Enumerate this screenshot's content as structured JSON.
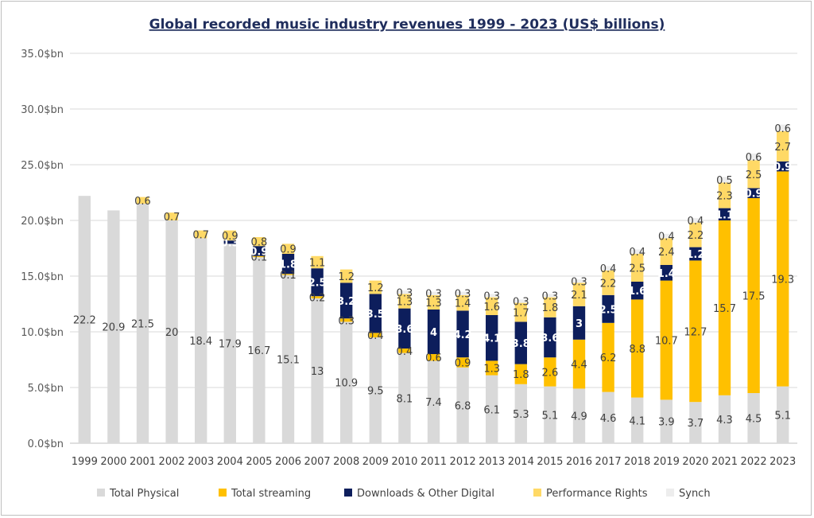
{
  "chart_data": {
    "type": "bar",
    "stacked": true,
    "title": "Global recorded music industry revenues 1999 - 2023 (US$ billions)",
    "xlabel": "",
    "ylabel": "",
    "ylim": [
      0,
      35
    ],
    "yticks": [
      0,
      5,
      10,
      15,
      20,
      25,
      30,
      35
    ],
    "ytick_labels": [
      "0.0$bn",
      "5.0$bn",
      "10.0$bn",
      "15.0$bn",
      "20.0$bn",
      "25.0$bn",
      "30.0$bn",
      "35.0$bn"
    ],
    "grid": true,
    "legend_position": "bottom",
    "categories": [
      "1999",
      "2000",
      "2001",
      "2002",
      "2003",
      "2004",
      "2005",
      "2006",
      "2007",
      "2008",
      "2009",
      "2010",
      "2011",
      "2012",
      "2013",
      "2014",
      "2015",
      "2016",
      "2017",
      "2018",
      "2019",
      "2020",
      "2021",
      "2022",
      "2023"
    ],
    "series": [
      {
        "name": "Total Physical",
        "color": "#d9d9d9",
        "label_color": "#404040",
        "values": [
          22.2,
          20.9,
          21.5,
          20,
          18.4,
          17.9,
          16.7,
          15.1,
          13,
          10.9,
          9.5,
          8.1,
          7.4,
          6.8,
          6.1,
          5.3,
          5.1,
          4.9,
          4.6,
          4.1,
          3.9,
          3.7,
          4.3,
          4.5,
          5.1
        ]
      },
      {
        "name": "Total streaming",
        "color": "#ffc000",
        "label_color": "#404040",
        "values": [
          null,
          null,
          null,
          null,
          null,
          null,
          0.1,
          0.1,
          0.2,
          0.3,
          0.4,
          0.4,
          0.6,
          0.9,
          1.3,
          1.8,
          2.6,
          4.4,
          6.2,
          8.8,
          10.7,
          12.7,
          15.7,
          17.5,
          19.3
        ]
      },
      {
        "name": "Downloads & Other Digital",
        "color": "#0d1e5c",
        "label_color": "#ffffff",
        "values": [
          null,
          null,
          null,
          null,
          null,
          0.3,
          0.9,
          1.8,
          2.5,
          3.2,
          3.5,
          3.6,
          4,
          4.2,
          4.1,
          3.8,
          3.6,
          3,
          2.5,
          1.6,
          1.4,
          1.2,
          1.1,
          0.9,
          0.9
        ]
      },
      {
        "name": "Performance Rights",
        "color": "#ffd966",
        "label_color": "#404040",
        "values": [
          null,
          null,
          0.6,
          0.7,
          0.7,
          0.9,
          0.8,
          0.9,
          1.1,
          1.2,
          1.2,
          1.3,
          1.3,
          1.4,
          1.6,
          1.7,
          1.8,
          2.1,
          2.2,
          2.5,
          2.4,
          2.2,
          2.3,
          2.5,
          2.7
        ]
      },
      {
        "name": "Synch",
        "color": "#ededed",
        "label_color": "#404040",
        "values": [
          null,
          null,
          null,
          null,
          null,
          null,
          null,
          null,
          null,
          null,
          null,
          0.3,
          0.3,
          0.3,
          0.3,
          0.3,
          0.3,
          0.3,
          0.4,
          0.4,
          0.4,
          0.4,
          0.5,
          0.6,
          0.6
        ]
      }
    ]
  }
}
